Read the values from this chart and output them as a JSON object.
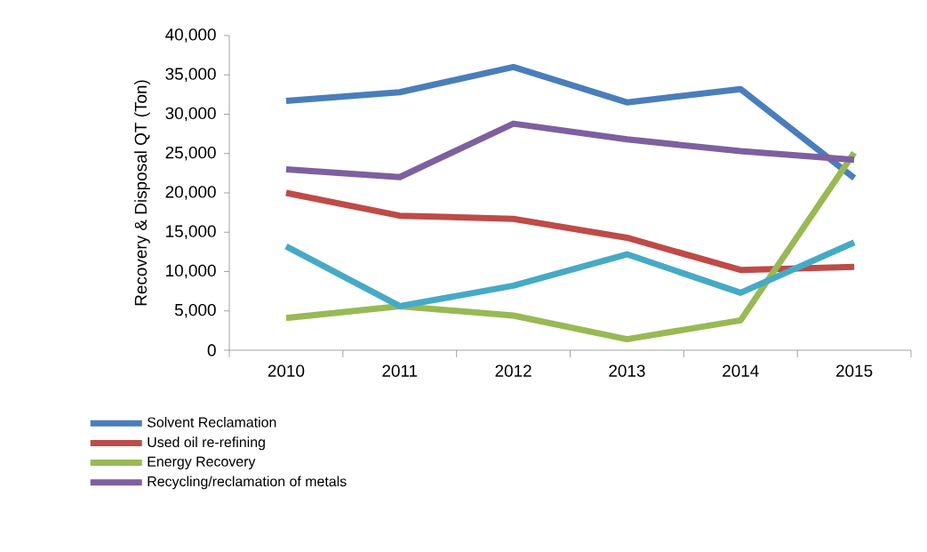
{
  "chart_data": {
    "type": "line",
    "ylabel": "Recovery  & Disposal QT  (Ton)",
    "categories": [
      "2010",
      "2011",
      "2012",
      "2013",
      "2014",
      "2015"
    ],
    "series": [
      {
        "name": "Solvent Reclamation",
        "color": "#4a7ebb",
        "values": [
          31700,
          32800,
          36000,
          31500,
          33200,
          21900
        ]
      },
      {
        "name": "Used oil re-refining",
        "color": "#be4b48",
        "values": [
          20000,
          17100,
          16700,
          14300,
          10200,
          10600
        ]
      },
      {
        "name": "Energy Recovery",
        "color": "#98b954",
        "values": [
          4100,
          5600,
          4400,
          1400,
          3800,
          25100
        ]
      },
      {
        "name": "Recycling/reclamation of metals",
        "color": "#7d60a0",
        "values": [
          23000,
          22000,
          28800,
          26800,
          25300,
          24200
        ]
      },
      {
        "color": "#46aac5",
        "values": [
          13200,
          5600,
          8200,
          12200,
          7300,
          13700
        ]
      }
    ],
    "ylim": [
      0,
      40000
    ],
    "yticks": [
      {
        "value": 0,
        "label": "0"
      },
      {
        "value": 5000,
        "label": "5,000"
      },
      {
        "value": 10000,
        "label": "10,000"
      },
      {
        "value": 15000,
        "label": "15,000"
      },
      {
        "value": 20000,
        "label": "20,000"
      },
      {
        "value": 25000,
        "label": "25,000"
      },
      {
        "value": 30000,
        "label": "30,000"
      },
      {
        "value": 35000,
        "label": "35,000"
      },
      {
        "value": 40000,
        "label": "40,000"
      }
    ],
    "grid": false,
    "legend": "bottom left",
    "marker": "none",
    "line_style": "solid"
  }
}
